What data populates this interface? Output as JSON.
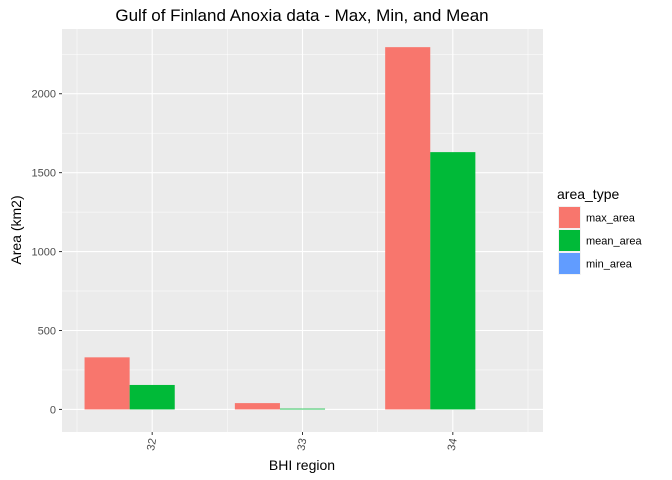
{
  "chart_data": {
    "type": "bar",
    "title": "Gulf of Finland Anoxia data - Max, Min, and Mean",
    "xlabel": "BHI region",
    "ylabel": "Area (km2)",
    "categories": [
      "32",
      "33",
      "34"
    ],
    "series": [
      {
        "name": "max_area",
        "color": "#F8766D",
        "values": [
          330,
          40,
          2295
        ]
      },
      {
        "name": "mean_area",
        "color": "#00BA38",
        "values": [
          155,
          5,
          1630
        ]
      },
      {
        "name": "min_area",
        "color": "#619CFF",
        "values": [
          0,
          0,
          0
        ]
      }
    ],
    "ylim": [
      -143,
      2410
    ],
    "yticks": [
      0,
      500,
      1000,
      1500,
      2000
    ],
    "legend": {
      "title": "area_type",
      "position": "right"
    },
    "grid": true,
    "panel_background": "#EBEBEB"
  }
}
